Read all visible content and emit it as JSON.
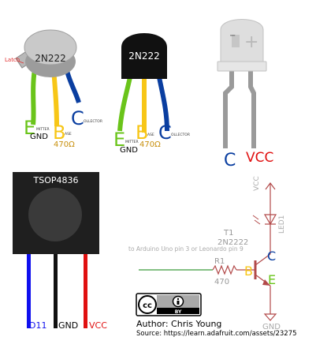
{
  "transistor_metal": {
    "part_label": "2N222",
    "latch_label": "Latch",
    "pins": {
      "e_letter": "E",
      "e_small": "MITTER",
      "e_extra": "GND",
      "b_letter": "B",
      "b_small": "ASE",
      "b_extra": "470Ω",
      "c_letter": "C",
      "c_small": "OLLECTOR"
    }
  },
  "transistor_plastic": {
    "part_label": "2N222",
    "pins": {
      "e_letter": "E",
      "e_small": "MITTER",
      "e_extra": "GND",
      "b_letter": "B",
      "b_small": "ASE",
      "b_extra": "470Ω",
      "c_letter": "C",
      "c_small": "OLLECTOR"
    }
  },
  "ir_led": {
    "minus": "−",
    "plus": "+",
    "left_pin": "C",
    "right_pin": "VCC"
  },
  "receiver": {
    "name": "TSOP4836",
    "pins": [
      "D11",
      "GND",
      "VCC"
    ]
  },
  "schematic": {
    "vcc": "VCC",
    "led": "LED1",
    "t_ref": "T1",
    "t_part": "2N2222",
    "input_note": "to Arduino Uno pin 3 or Leonardo pin 9",
    "r_ref": "R1",
    "r_value": "470",
    "b": "B",
    "c": "C",
    "e": "E",
    "gnd": "GND"
  },
  "credits": {
    "cc_left": "cc",
    "cc_by": "BY",
    "author": "Author: Chris Young",
    "source": "Source: https://learn.adafruit.com/assets/23275"
  },
  "colors": {
    "emitter": "#6ac41a",
    "base": "#f7c617",
    "collector": "#0a3ea0",
    "schematic_red": "#b24a4a",
    "schematic_green": "#3a9a3a",
    "pin_blue": "#1010ee",
    "pin_red": "#e01010"
  }
}
